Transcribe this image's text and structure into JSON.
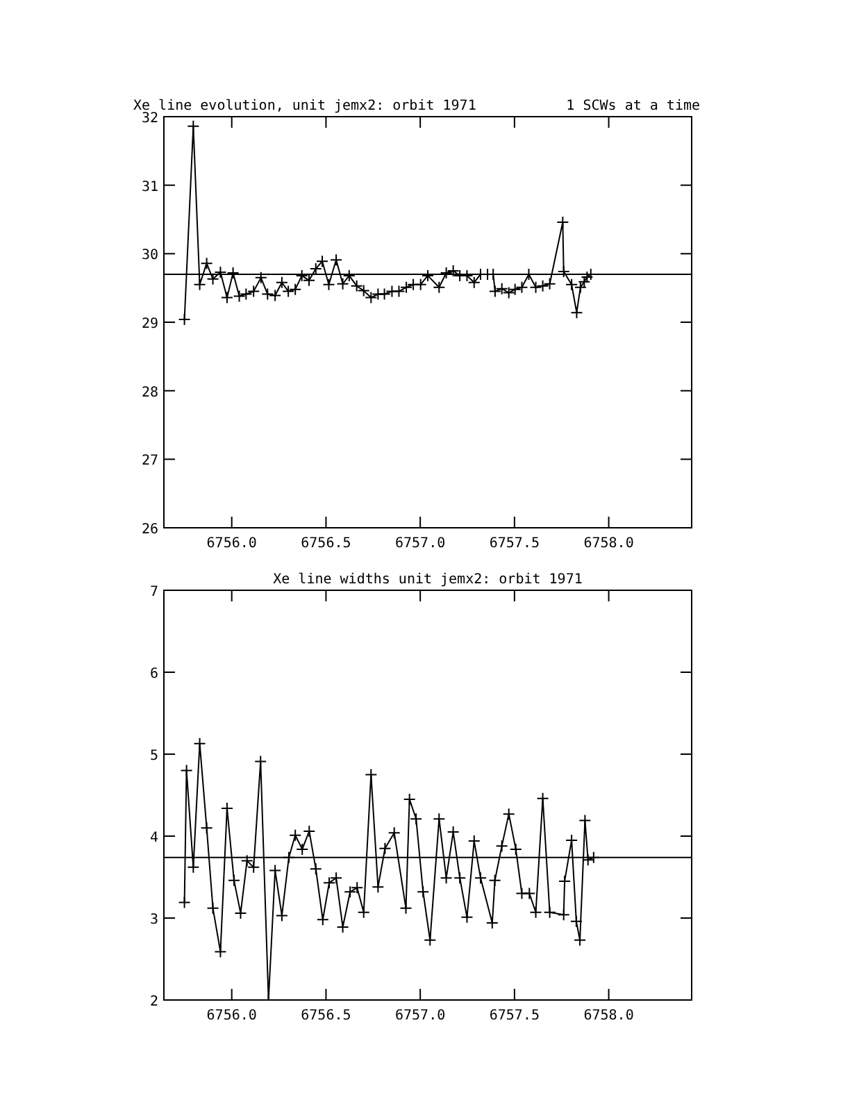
{
  "chart_data": [
    {
      "type": "line",
      "title": "Xe line evolution, unit jemx2: orbit 1971",
      "annotations": [
        "1 SCWs at a time"
      ],
      "marker": "cross",
      "line_style": "solid",
      "xlim": [
        6755.64,
        6758.44
      ],
      "ylim": [
        26,
        32
      ],
      "xticks": [
        {
          "value": 6756,
          "label": "6756.0"
        },
        {
          "value": 6756.5,
          "label": "6756.5"
        },
        {
          "value": 6757,
          "label": "6757.0"
        },
        {
          "value": 6757.5,
          "label": "6757.5"
        },
        {
          "value": 6758,
          "label": "6758.0"
        }
      ],
      "yticks": [
        26,
        27,
        28,
        29,
        30,
        31,
        32
      ],
      "ref_lines": [
        {
          "axis": "y",
          "value": 29.7,
          "color": "#000000"
        }
      ],
      "series": [
        {
          "color": "#000000",
          "x": [
            6755.749,
            6755.796,
            6755.83,
            6755.867,
            6755.9,
            6755.94,
            6755.975,
            6756.007,
            6756.04,
            6756.076,
            6756.116,
            6756.155,
            6756.19,
            6756.23,
            6756.266,
            6756.3,
            6756.337,
            6756.372,
            6756.41,
            6756.446,
            6756.48,
            6756.515,
            6756.554,
            6756.589,
            6756.623,
            6756.663,
            6756.7,
            6756.739,
            6756.776,
            6756.81,
            6756.85,
            6756.887,
            6756.926,
            6756.963,
            6757.002,
            6757.04,
            6757.1,
            6757.138,
            6757.175,
            6757.21,
            6757.248,
            6757.286,
            6757.32,
            6757.357,
            6757.387,
            6757.397,
            6757.433,
            6757.47,
            6757.503,
            6757.539,
            6757.576,
            6757.613,
            6757.65,
            6757.687,
            6757.756,
            6757.761,
            6757.803,
            6757.83,
            6757.85,
            6757.87,
            6757.885,
            6757.905
          ],
          "values": [
            29.04,
            31.86,
            29.55,
            29.86,
            29.63,
            29.73,
            29.36,
            29.72,
            29.38,
            29.41,
            29.45,
            29.65,
            29.41,
            29.39,
            29.58,
            29.45,
            29.48,
            29.68,
            29.61,
            29.78,
            29.89,
            29.55,
            29.91,
            29.56,
            29.68,
            29.53,
            29.46,
            29.36,
            29.41,
            29.41,
            29.45,
            29.45,
            29.51,
            29.55,
            29.55,
            29.68,
            29.51,
            29.72,
            29.75,
            29.68,
            29.68,
            29.58,
            29.7,
            29.7,
            29.7,
            29.45,
            29.49,
            29.43,
            29.48,
            29.51,
            29.7,
            29.51,
            29.53,
            29.56,
            30.46,
            29.74,
            29.55,
            29.14,
            29.51,
            29.59,
            29.66,
            29.7
          ]
        }
      ]
    },
    {
      "type": "line",
      "title": "Xe line widths unit jemx2: orbit 1971",
      "marker": "cross",
      "line_style": "solid",
      "xlim": [
        6755.64,
        6758.44
      ],
      "ylim": [
        2,
        7
      ],
      "xticks": [
        {
          "value": 6756,
          "label": "6756.0"
        },
        {
          "value": 6756.5,
          "label": "6756.5"
        },
        {
          "value": 6757,
          "label": "6757.0"
        },
        {
          "value": 6757.5,
          "label": "6757.5"
        },
        {
          "value": 6758,
          "label": "6758.0"
        }
      ],
      "yticks": [
        2,
        3,
        4,
        5,
        6,
        7
      ],
      "ref_lines": [
        {
          "axis": "y",
          "value": 3.74,
          "color": "#000000"
        }
      ],
      "series": [
        {
          "color": "#000000",
          "x": [
            6755.749,
            6755.76,
            6755.796,
            6755.83,
            6755.867,
            6755.9,
            6755.94,
            6755.975,
            6756.012,
            6756.047,
            6756.081,
            6756.116,
            6756.153,
            6756.195,
            6756.23,
            6756.266,
            6756.303,
            6756.337,
            6756.374,
            6756.411,
            6756.446,
            6756.483,
            6756.517,
            6756.554,
            6756.589,
            6756.628,
            6756.665,
            6756.7,
            6756.739,
            6756.776,
            6756.813,
            6756.862,
            6756.924,
            6756.943,
            6756.978,
            6757.015,
            6757.052,
            6757.1,
            6757.138,
            6757.175,
            6757.21,
            6757.248,
            6757.286,
            6757.32,
            6757.382,
            6757.396,
            6757.433,
            6757.47,
            6757.507,
            6757.539,
            6757.579,
            6757.613,
            6757.65,
            6757.687,
            6757.761,
            6757.766,
            6757.803,
            6757.828,
            6757.847,
            6757.874,
            6757.89,
            6757.92
          ],
          "values": [
            3.19,
            4.8,
            3.62,
            5.13,
            4.1,
            3.12,
            2.59,
            4.34,
            3.46,
            3.06,
            3.7,
            3.62,
            4.91,
            2.0,
            3.58,
            3.03,
            3.74,
            4.01,
            3.84,
            4.06,
            3.6,
            2.98,
            3.43,
            3.49,
            2.89,
            3.32,
            3.37,
            3.07,
            4.75,
            3.38,
            3.85,
            4.04,
            3.12,
            4.45,
            4.21,
            3.32,
            2.73,
            4.21,
            3.49,
            4.05,
            3.49,
            3.01,
            3.94,
            3.49,
            2.94,
            3.46,
            3.88,
            4.27,
            3.84,
            3.3,
            3.3,
            3.07,
            4.46,
            3.07,
            3.04,
            3.45,
            3.95,
            2.96,
            2.73,
            4.19,
            3.71,
            3.74
          ]
        }
      ]
    }
  ]
}
